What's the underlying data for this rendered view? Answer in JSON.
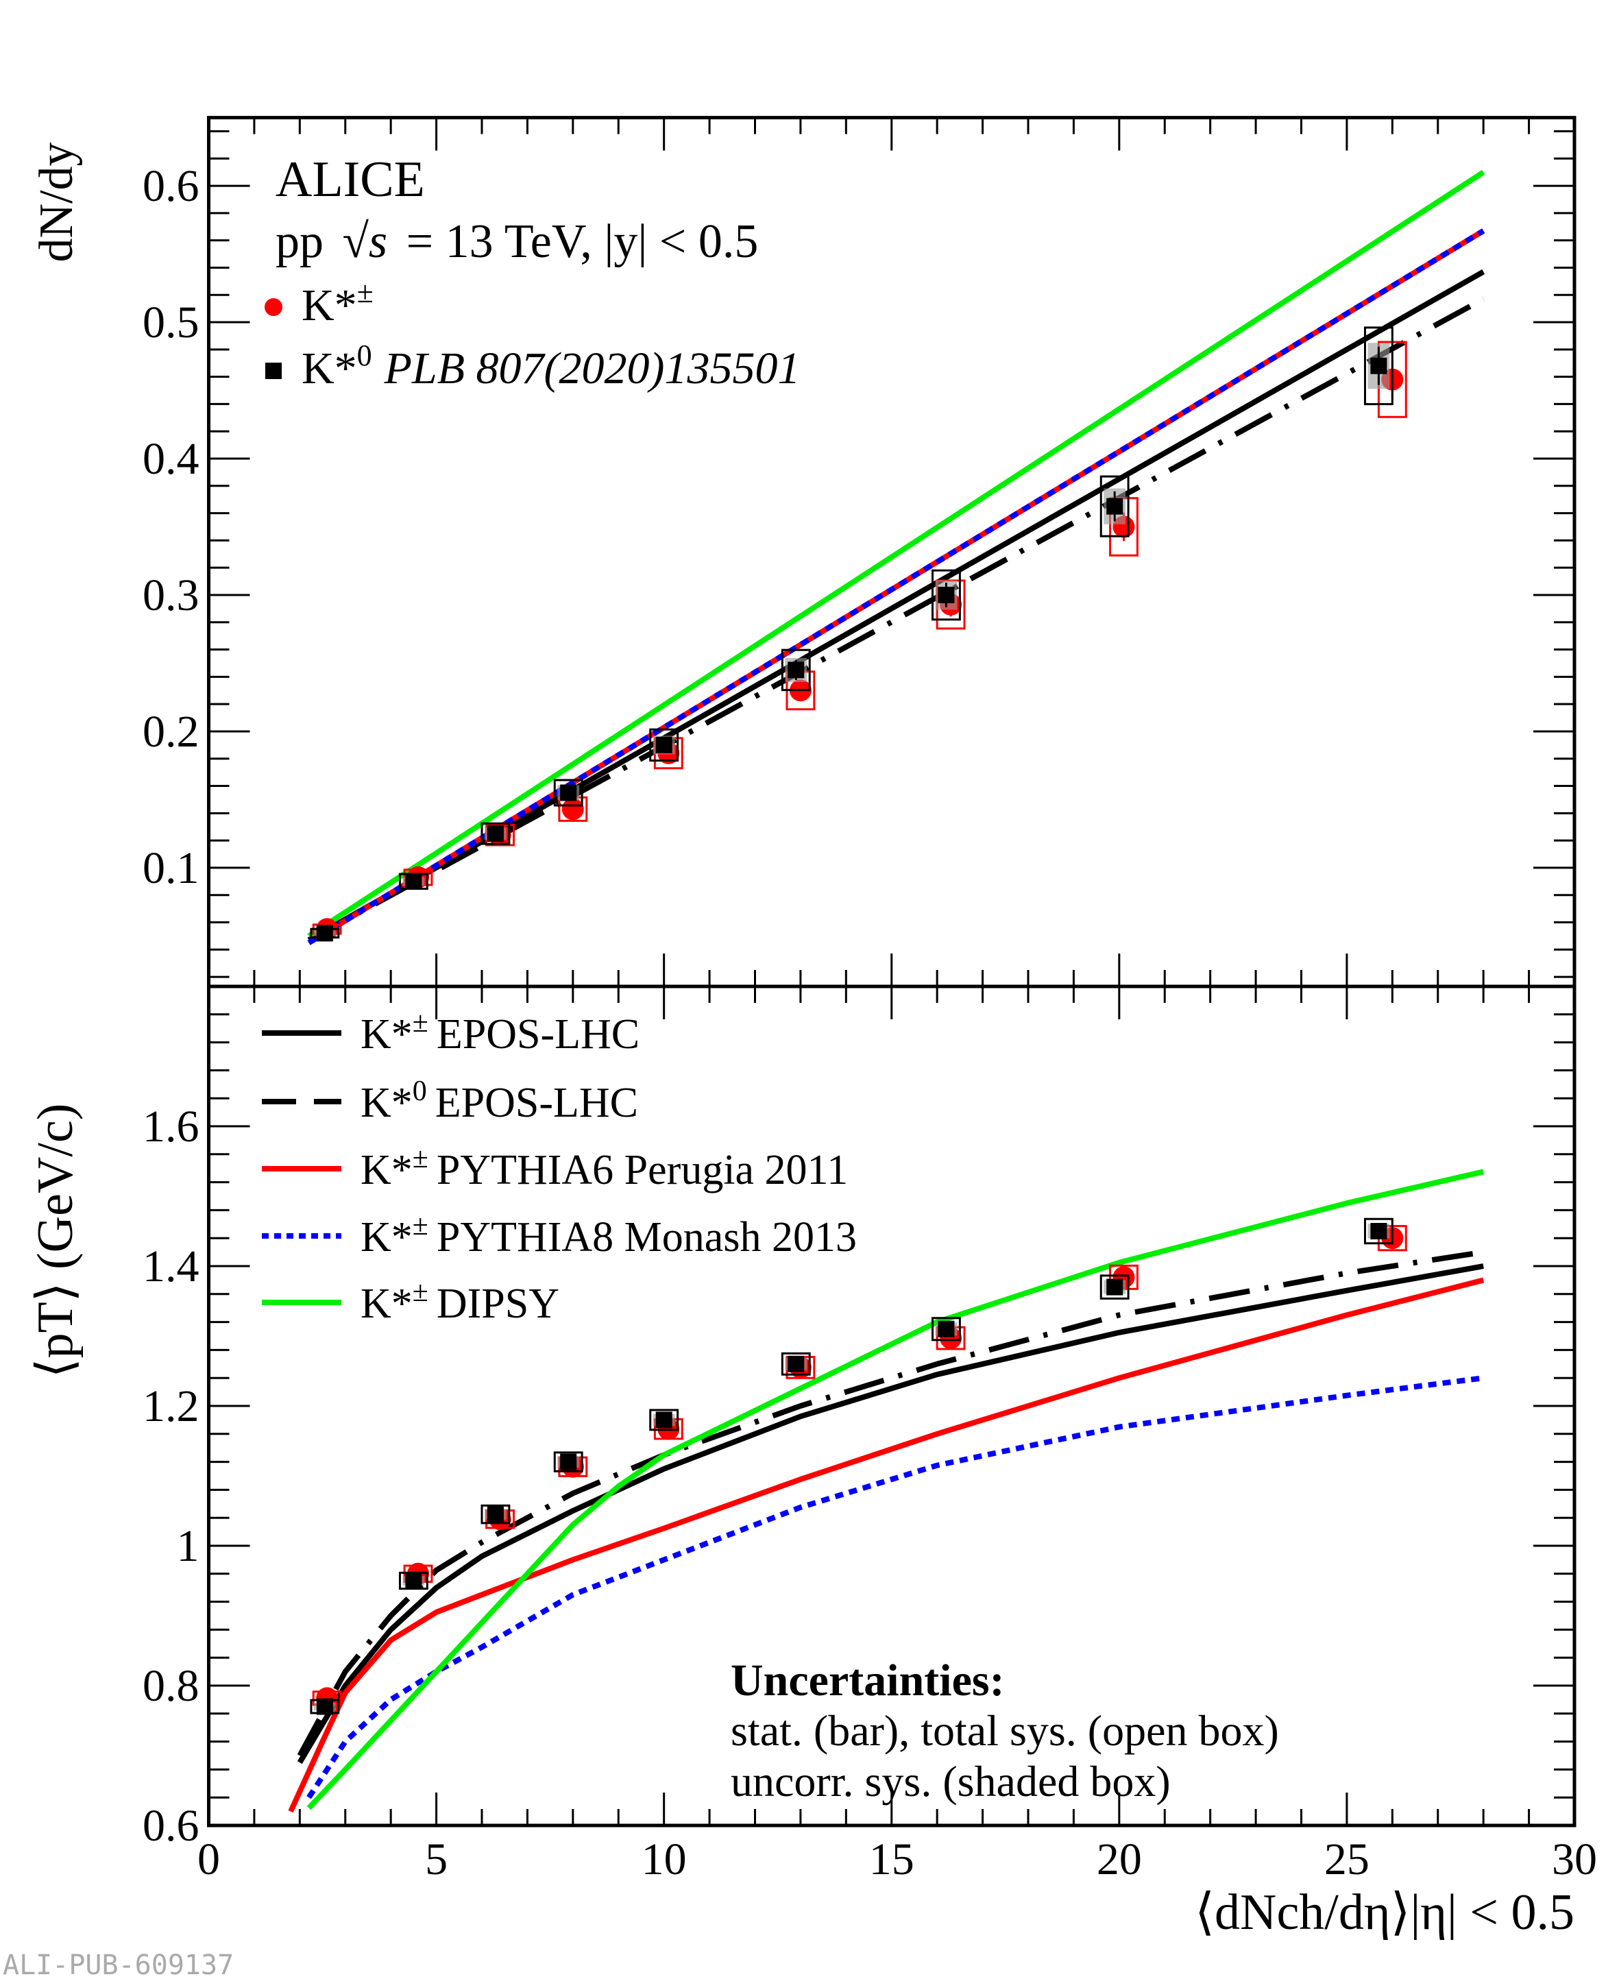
{
  "chart_data": [
    {
      "type": "scatter",
      "panel": "top",
      "ylabel": "dN/dy",
      "xlim": [
        0,
        30
      ],
      "ylim": [
        0.013,
        0.65
      ],
      "x_ticks": [
        "0",
        "5",
        "10",
        "15",
        "20",
        "25",
        "30"
      ],
      "y_ticks": [
        "0.1",
        "0.2",
        "0.3",
        "0.4",
        "0.5",
        "0.6"
      ],
      "grid": false,
      "annotations": {
        "experiment": "ALICE",
        "system_prefix": "pp",
        "system_energy": "= 13 TeV, |y| < 0.5",
        "sqrt_s": "√s"
      },
      "legend": [
        {
          "particle": "K*",
          "sup": "±",
          "ref": "",
          "color": "#ff0000",
          "marker": "circle"
        },
        {
          "particle": "K*",
          "sup": "0",
          "ref": "PLB 807(2020)135501",
          "color": "#000000",
          "marker": "square"
        }
      ],
      "series": [
        {
          "name": "K*±",
          "x": [
            2.6,
            4.6,
            6.4,
            8.0,
            10.1,
            13.0,
            16.3,
            20.1,
            26.0
          ],
          "y": [
            0.055,
            0.093,
            0.124,
            0.143,
            0.184,
            0.23,
            0.293,
            0.35,
            0.458
          ]
        },
        {
          "name": "K*0",
          "x": [
            2.55,
            4.5,
            6.3,
            7.9,
            10.0,
            12.9,
            16.2,
            19.9,
            25.7
          ],
          "y": [
            0.052,
            0.09,
            0.125,
            0.155,
            0.19,
            0.245,
            0.3,
            0.365,
            0.468
          ]
        }
      ],
      "models": [
        {
          "name": "K*± EPOS-LHC",
          "x": [
            2.2,
            28
          ],
          "y": [
            0.047,
            0.537
          ]
        },
        {
          "name": "K*0 EPOS-LHC",
          "x": [
            2.2,
            28
          ],
          "y": [
            0.047,
            0.517
          ]
        },
        {
          "name": "K*± PYTHIA6 Perugia 2011",
          "x": [
            2.2,
            28
          ],
          "y": [
            0.045,
            0.567
          ]
        },
        {
          "name": "K*± PYTHIA8 Monash 2013",
          "x": [
            2.2,
            28
          ],
          "y": [
            0.045,
            0.567
          ]
        },
        {
          "name": "K*± DIPSY",
          "x": [
            2.2,
            28
          ],
          "y": [
            0.05,
            0.61
          ]
        }
      ]
    },
    {
      "type": "scatter",
      "panel": "bottom",
      "ylabel": "⟨pT⟩ (GeV/c)",
      "xlabel": "⟨dNch/dη⟩|η| < 0.5",
      "xlim": [
        0,
        30
      ],
      "ylim": [
        0.6,
        1.8
      ],
      "x_ticks": [
        "0",
        "5",
        "10",
        "15",
        "20",
        "25",
        "30"
      ],
      "y_ticks": [
        "0.6",
        "0.8",
        "1",
        "1.2",
        "1.4",
        "1.6"
      ],
      "grid": false,
      "legend": [
        {
          "particle": "K*",
          "sup": "±",
          "model": "EPOS-LHC",
          "color": "#000000",
          "style": "solid"
        },
        {
          "particle": "K*",
          "sup": "0",
          "model": "EPOS-LHC",
          "color": "#000000",
          "style": "dashdot"
        },
        {
          "particle": "K*",
          "sup": "±",
          "model": "PYTHIA6 Perugia 2011",
          "color": "#ff0000",
          "style": "solid"
        },
        {
          "particle": "K*",
          "sup": "±",
          "model": "PYTHIA8 Monash 2013",
          "color": "#0000ff",
          "style": "dotted"
        },
        {
          "particle": "K*",
          "sup": "±",
          "model": "DIPSY",
          "color": "#00ee00",
          "style": "solid"
        }
      ],
      "uncertainties": {
        "title": "Uncertainties:",
        "line1": "stat. (bar), total sys. (open box)",
        "line2": "uncorr. sys. (shaded box)"
      },
      "series": [
        {
          "name": "K*±",
          "x": [
            2.6,
            4.6,
            6.4,
            8.0,
            10.1,
            13.0,
            16.3,
            20.1,
            26.0
          ],
          "y": [
            0.782,
            0.96,
            1.038,
            1.113,
            1.167,
            1.255,
            1.297,
            1.384,
            1.44
          ]
        },
        {
          "name": "K*0",
          "x": [
            2.55,
            4.5,
            6.3,
            7.9,
            10.0,
            12.9,
            16.2,
            19.9,
            25.7
          ],
          "y": [
            0.77,
            0.95,
            1.045,
            1.12,
            1.18,
            1.26,
            1.31,
            1.37,
            1.45
          ]
        }
      ],
      "models": [
        {
          "name": "K*± EPOS-LHC",
          "x": [
            2,
            3,
            4,
            5,
            6,
            8,
            10,
            13,
            16,
            20,
            25,
            28
          ],
          "y": [
            0.69,
            0.8,
            0.88,
            0.94,
            0.985,
            1.05,
            1.11,
            1.185,
            1.245,
            1.305,
            1.365,
            1.4
          ]
        },
        {
          "name": "K*0 EPOS-LHC",
          "x": [
            2,
            3,
            4,
            5,
            6,
            8,
            10,
            13,
            16,
            20,
            25,
            28
          ],
          "y": [
            0.7,
            0.82,
            0.9,
            0.965,
            1.005,
            1.075,
            1.13,
            1.2,
            1.26,
            1.33,
            1.39,
            1.42
          ]
        },
        {
          "name": "K*± PYTHIA6 Perugia 2011",
          "x": [
            1.8,
            2.5,
            3,
            4,
            5,
            6,
            8,
            10,
            13,
            16,
            20,
            25,
            28
          ],
          "y": [
            0.62,
            0.72,
            0.79,
            0.865,
            0.905,
            0.93,
            0.98,
            1.025,
            1.095,
            1.16,
            1.24,
            1.33,
            1.38
          ]
        },
        {
          "name": "K*± PYTHIA8 Monash 2013",
          "x": [
            2.2,
            3,
            4,
            5,
            6,
            8,
            10,
            13,
            16,
            20,
            25,
            28
          ],
          "y": [
            0.64,
            0.72,
            0.78,
            0.82,
            0.855,
            0.93,
            0.98,
            1.055,
            1.115,
            1.17,
            1.215,
            1.24
          ]
        },
        {
          "name": "K*± DIPSY",
          "x": [
            2.2,
            3,
            4,
            5,
            6,
            7,
            8,
            9,
            10,
            13,
            16,
            20,
            25,
            28
          ],
          "y": [
            0.625,
            0.68,
            0.75,
            0.82,
            0.89,
            0.96,
            1.03,
            1.085,
            1.13,
            1.225,
            1.32,
            1.405,
            1.49,
            1.535
          ]
        }
      ]
    }
  ],
  "watermark": "ALI-PUB-609137"
}
